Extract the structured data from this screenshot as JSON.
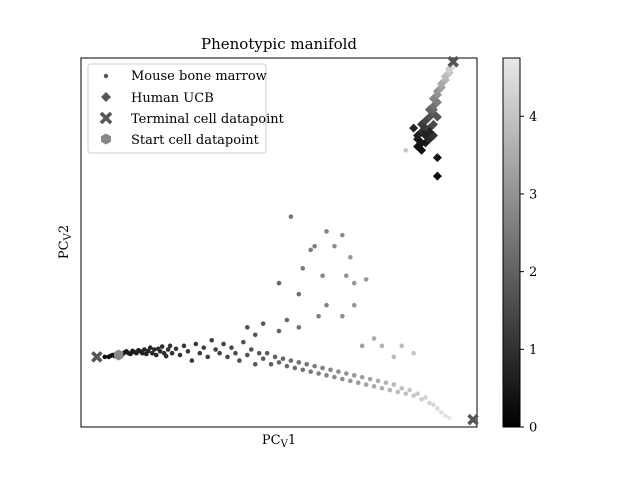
{
  "chart_data": {
    "type": "scatter",
    "title": "Phenotypic manifold",
    "xlabel": "PC",
    "xlabel_sub": "V",
    "xlabel_suffix": "1",
    "ylabel": "PC",
    "ylabel_sub": "V",
    "ylabel_suffix": "2",
    "x_ticks_shown": false,
    "y_ticks_shown": false,
    "grid": false,
    "legend_placement": "top-left",
    "colormap": "gray",
    "colorbar": {
      "min": 0,
      "max": 4.75,
      "ticks": [
        "0",
        "1",
        "2",
        "3",
        "4"
      ],
      "tick_values": [
        0,
        1,
        2,
        3,
        4
      ]
    },
    "legend": [
      {
        "label": "Mouse bone marrow",
        "marker": "dot"
      },
      {
        "label": "Human UCB",
        "marker": "diamond"
      },
      {
        "label": "Terminal cell datapoint",
        "marker": "x"
      },
      {
        "label": "Start cell datapoint",
        "marker": "hexagon"
      }
    ],
    "mouse_bone_marrow_points": [
      [
        0.06,
        0.19,
        0.05
      ],
      [
        0.07,
        0.19,
        0.08
      ],
      [
        0.075,
        0.193,
        0.1
      ],
      [
        0.08,
        0.195,
        0.12
      ],
      [
        0.085,
        0.192,
        0.15
      ],
      [
        0.09,
        0.196,
        0.17
      ],
      [
        0.095,
        0.198,
        0.2
      ],
      [
        0.1,
        0.2,
        0.22
      ],
      [
        0.105,
        0.197,
        0.25
      ],
      [
        0.11,
        0.202,
        0.27
      ],
      [
        0.115,
        0.205,
        0.3
      ],
      [
        0.12,
        0.2,
        0.32
      ],
      [
        0.125,
        0.198,
        0.35
      ],
      [
        0.13,
        0.206,
        0.37
      ],
      [
        0.135,
        0.203,
        0.4
      ],
      [
        0.14,
        0.2,
        0.42
      ],
      [
        0.145,
        0.208,
        0.45
      ],
      [
        0.15,
        0.205,
        0.47
      ],
      [
        0.155,
        0.2,
        0.5
      ],
      [
        0.16,
        0.21,
        0.52
      ],
      [
        0.165,
        0.198,
        0.55
      ],
      [
        0.17,
        0.206,
        0.57
      ],
      [
        0.175,
        0.215,
        0.6
      ],
      [
        0.18,
        0.2,
        0.62
      ],
      [
        0.185,
        0.21,
        0.65
      ],
      [
        0.19,
        0.195,
        0.67
      ],
      [
        0.195,
        0.212,
        0.7
      ],
      [
        0.2,
        0.205,
        0.72
      ],
      [
        0.205,
        0.218,
        0.75
      ],
      [
        0.21,
        0.2,
        0.77
      ],
      [
        0.215,
        0.192,
        0.8
      ],
      [
        0.22,
        0.21,
        0.82
      ],
      [
        0.225,
        0.22,
        0.85
      ],
      [
        0.23,
        0.2,
        0.87
      ],
      [
        0.24,
        0.212,
        0.9
      ],
      [
        0.25,
        0.195,
        0.93
      ],
      [
        0.26,
        0.22,
        0.96
      ],
      [
        0.27,
        0.205,
        1.0
      ],
      [
        0.28,
        0.18,
        1.02
      ],
      [
        0.29,
        0.225,
        1.05
      ],
      [
        0.3,
        0.2,
        1.08
      ],
      [
        0.31,
        0.215,
        1.1
      ],
      [
        0.32,
        0.19,
        1.12
      ],
      [
        0.33,
        0.235,
        1.15
      ],
      [
        0.34,
        0.21,
        1.18
      ],
      [
        0.35,
        0.2,
        1.2
      ],
      [
        0.36,
        0.225,
        1.25
      ],
      [
        0.37,
        0.19,
        1.3
      ],
      [
        0.38,
        0.215,
        1.35
      ],
      [
        0.39,
        0.2,
        1.4
      ],
      [
        0.4,
        0.18,
        1.45
      ],
      [
        0.41,
        0.23,
        1.5
      ],
      [
        0.42,
        0.195,
        1.55
      ],
      [
        0.43,
        0.21,
        1.6
      ],
      [
        0.44,
        0.17,
        1.65
      ],
      [
        0.45,
        0.2,
        1.7
      ],
      [
        0.46,
        0.185,
        1.75
      ],
      [
        0.47,
        0.2,
        1.8
      ],
      [
        0.48,
        0.17,
        1.85
      ],
      [
        0.49,
        0.19,
        1.9
      ],
      [
        0.5,
        0.175,
        1.95
      ],
      [
        0.51,
        0.185,
        2.0
      ],
      [
        0.52,
        0.165,
        2.05
      ],
      [
        0.53,
        0.18,
        2.1
      ],
      [
        0.54,
        0.16,
        2.15
      ],
      [
        0.55,
        0.175,
        2.2
      ],
      [
        0.56,
        0.155,
        2.25
      ],
      [
        0.57,
        0.17,
        2.3
      ],
      [
        0.58,
        0.15,
        2.4
      ],
      [
        0.59,
        0.165,
        2.45
      ],
      [
        0.6,
        0.145,
        2.5
      ],
      [
        0.61,
        0.16,
        2.55
      ],
      [
        0.62,
        0.14,
        2.6
      ],
      [
        0.63,
        0.155,
        2.7
      ],
      [
        0.64,
        0.135,
        2.75
      ],
      [
        0.65,
        0.15,
        2.8
      ],
      [
        0.66,
        0.13,
        2.85
      ],
      [
        0.67,
        0.145,
        2.9
      ],
      [
        0.68,
        0.125,
        3.0
      ],
      [
        0.69,
        0.14,
        3.05
      ],
      [
        0.7,
        0.12,
        3.1
      ],
      [
        0.71,
        0.135,
        3.2
      ],
      [
        0.72,
        0.115,
        3.25
      ],
      [
        0.73,
        0.13,
        3.3
      ],
      [
        0.74,
        0.11,
        3.4
      ],
      [
        0.75,
        0.125,
        3.45
      ],
      [
        0.76,
        0.105,
        3.5
      ],
      [
        0.77,
        0.12,
        3.6
      ],
      [
        0.78,
        0.1,
        3.65
      ],
      [
        0.79,
        0.115,
        3.7
      ],
      [
        0.8,
        0.095,
        3.8
      ],
      [
        0.81,
        0.105,
        3.85
      ],
      [
        0.82,
        0.09,
        3.9
      ],
      [
        0.83,
        0.1,
        4.0
      ],
      [
        0.84,
        0.085,
        4.05
      ],
      [
        0.85,
        0.09,
        4.1
      ],
      [
        0.86,
        0.075,
        4.2
      ],
      [
        0.87,
        0.08,
        4.25
      ],
      [
        0.88,
        0.065,
        4.3
      ],
      [
        0.89,
        0.06,
        4.4
      ],
      [
        0.9,
        0.05,
        4.45
      ],
      [
        0.91,
        0.04,
        4.55
      ],
      [
        0.92,
        0.03,
        4.6
      ],
      [
        0.93,
        0.025,
        4.7
      ],
      [
        0.42,
        0.27,
        1.5
      ],
      [
        0.44,
        0.25,
        1.6
      ],
      [
        0.46,
        0.28,
        1.7
      ],
      [
        0.5,
        0.26,
        1.9
      ],
      [
        0.52,
        0.29,
        2.0
      ],
      [
        0.55,
        0.27,
        2.2
      ],
      [
        0.6,
        0.3,
        2.5
      ],
      [
        0.62,
        0.33,
        2.6
      ],
      [
        0.66,
        0.3,
        2.8
      ],
      [
        0.69,
        0.33,
        3.0
      ],
      [
        0.71,
        0.22,
        3.2
      ],
      [
        0.74,
        0.24,
        3.4
      ],
      [
        0.76,
        0.22,
        3.6
      ],
      [
        0.81,
        0.22,
        3.8
      ],
      [
        0.79,
        0.19,
        3.7
      ],
      [
        0.84,
        0.2,
        4.0
      ],
      [
        0.56,
        0.43,
        2.4
      ],
      [
        0.58,
        0.48,
        2.5
      ],
      [
        0.61,
        0.41,
        2.6
      ],
      [
        0.67,
        0.41,
        2.9
      ],
      [
        0.72,
        0.4,
        3.1
      ],
      [
        0.53,
        0.57,
        2.3
      ],
      [
        0.64,
        0.49,
        2.8
      ],
      [
        0.68,
        0.46,
        3.0
      ],
      [
        0.69,
        0.39,
        3.0
      ],
      [
        0.59,
        0.49,
        2.5
      ],
      [
        0.62,
        0.53,
        2.6
      ],
      [
        0.66,
        0.52,
        2.8
      ],
      [
        0.86,
        0.79,
        4.2
      ],
      [
        0.82,
        0.75,
        4.0
      ],
      [
        0.5,
        0.39,
        1.9
      ],
      [
        0.55,
        0.36,
        2.2
      ]
    ],
    "human_ucb_points": [
      [
        0.85,
        0.78,
        0.3
      ],
      [
        0.86,
        0.77,
        0.2
      ],
      [
        0.87,
        0.77,
        0.4
      ],
      [
        0.88,
        0.79,
        0.6
      ],
      [
        0.86,
        0.8,
        0.8
      ],
      [
        0.87,
        0.8,
        0.5
      ],
      [
        0.88,
        0.78,
        0.7
      ],
      [
        0.89,
        0.79,
        0.9
      ],
      [
        0.85,
        0.79,
        0.4
      ],
      [
        0.86,
        0.82,
        1.1
      ],
      [
        0.87,
        0.81,
        1.0
      ],
      [
        0.88,
        0.81,
        1.2
      ],
      [
        0.89,
        0.82,
        1.4
      ],
      [
        0.87,
        0.83,
        1.3
      ],
      [
        0.88,
        0.84,
        1.5
      ],
      [
        0.89,
        0.85,
        1.7
      ],
      [
        0.88,
        0.86,
        1.9
      ],
      [
        0.89,
        0.86,
        2.0
      ],
      [
        0.89,
        0.87,
        2.2
      ],
      [
        0.9,
        0.88,
        2.4
      ],
      [
        0.89,
        0.89,
        2.6
      ],
      [
        0.9,
        0.9,
        2.8
      ],
      [
        0.9,
        0.91,
        3.0
      ],
      [
        0.91,
        0.92,
        3.2
      ],
      [
        0.91,
        0.93,
        3.4
      ],
      [
        0.92,
        0.94,
        3.6
      ],
      [
        0.92,
        0.95,
        3.8
      ],
      [
        0.93,
        0.96,
        4.0
      ],
      [
        0.93,
        0.97,
        4.2
      ],
      [
        0.94,
        0.98,
        4.4
      ],
      [
        0.94,
        0.985,
        4.6
      ],
      [
        0.85,
        0.76,
        0.2
      ],
      [
        0.86,
        0.75,
        0.1
      ],
      [
        0.84,
        0.81,
        0.6
      ],
      [
        0.9,
        0.73,
        0.1
      ],
      [
        0.9,
        0.68,
        0.05
      ],
      [
        0.86,
        0.77,
        0.3
      ],
      [
        0.87,
        0.79,
        0.5
      ],
      [
        0.88,
        0.8,
        0.6
      ],
      [
        0.9,
        0.84,
        1.6
      ]
    ],
    "terminal_points": [
      [
        0.94,
        0.99
      ],
      [
        0.99,
        0.02
      ],
      [
        0.04,
        0.19
      ]
    ],
    "start_points": [
      [
        0.095,
        0.195
      ]
    ]
  }
}
